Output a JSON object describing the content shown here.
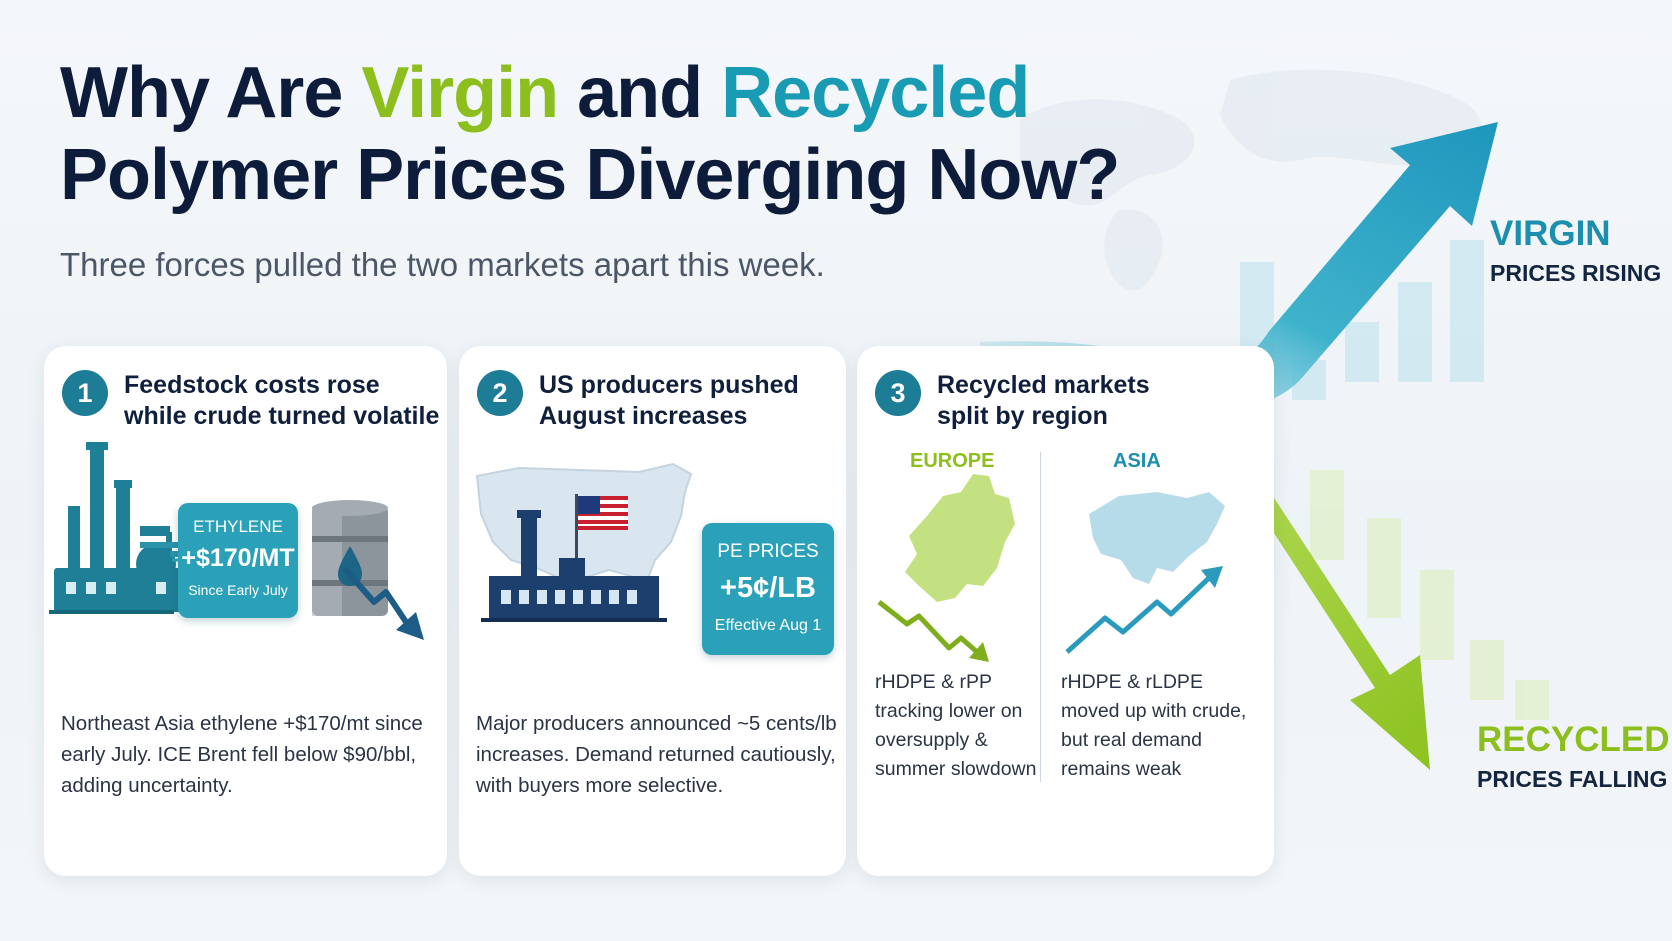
{
  "headline": {
    "part1": "Why Are ",
    "virgin": "Virgin",
    "part2": " and ",
    "recycled": "Recycled",
    "line2": "Polymer Prices Diverging Now?"
  },
  "subtitle": "Three forces pulled the two markets apart this week.",
  "colors": {
    "virgin": "#1d8fae",
    "recycled": "#8cbf1e",
    "navy": "#0d1c3a",
    "teal_box": "#2aa1b8"
  },
  "cards": [
    {
      "number": "1",
      "title_lines": [
        "Feedstock costs rose",
        "while crude turned volatile"
      ],
      "box": {
        "label": "ETHYLENE",
        "value": "+$170/MT",
        "sub": "Since Early July"
      },
      "body_lines": [
        "Northeast Asia ethylene +$170/mt since",
        "early July. ICE Brent fell below $90/bbl,",
        "adding uncertainty."
      ],
      "icons": [
        "refinery-icon",
        "oil-barrel-icon",
        "down-trend-arrow-icon"
      ]
    },
    {
      "number": "2",
      "title_lines": [
        "US producers pushed",
        "August increases"
      ],
      "box": {
        "label": "PE PRICES",
        "value": "+5¢/LB",
        "sub": "Effective Aug 1"
      },
      "body_lines": [
        "Major producers announced ~5 cents/lb",
        "increases. Demand returned cautiously,",
        "with buyers more selective."
      ],
      "icons": [
        "us-map-icon",
        "us-flag-icon",
        "factory-icon"
      ]
    },
    {
      "number": "3",
      "title_lines": [
        "Recycled markets",
        "split by region"
      ],
      "regions": [
        {
          "name": "EUROPE",
          "text_lines": [
            "rHDPE & rPP",
            "tracking lower on",
            "oversupply &",
            "summer slowdown"
          ],
          "trend": "down"
        },
        {
          "name": "ASIA",
          "text_lines": [
            "rHDPE & rLDPE",
            "moved up with crude,",
            "but real demand",
            "remains weak"
          ],
          "trend": "up"
        }
      ],
      "icons": [
        "europe-map-icon",
        "asia-map-icon",
        "down-trend-icon",
        "up-trend-icon"
      ]
    }
  ],
  "side": {
    "virgin": {
      "title": "VIRGIN",
      "sub": "PRICES RISING",
      "direction": "up"
    },
    "recycled": {
      "title": "RECYCLED",
      "sub": "PRICES FALLING",
      "direction": "down"
    }
  }
}
